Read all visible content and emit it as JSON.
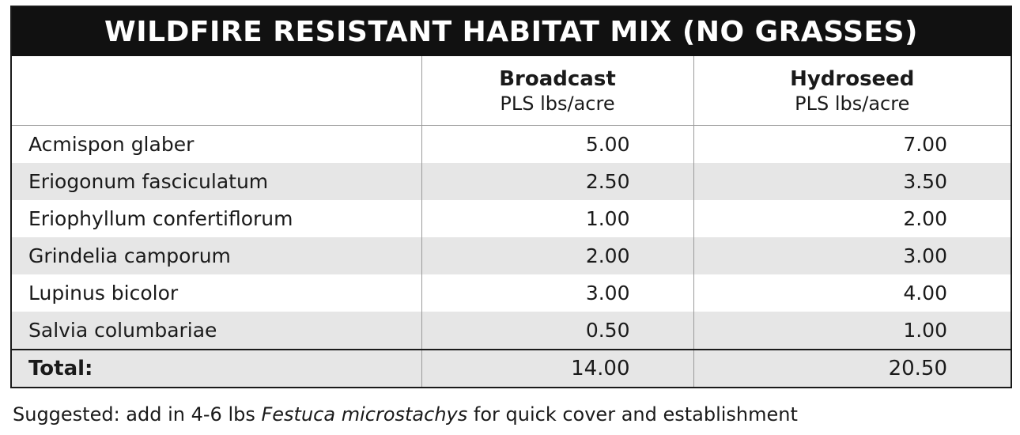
{
  "title": "WILDFIRE RESISTANT HABITAT MIX (NO GRASSES)",
  "columns": {
    "broadcast": {
      "method": "Broadcast",
      "unit": "PLS lbs/acre"
    },
    "hydroseed": {
      "method": "Hydroseed",
      "unit": "PLS lbs/acre"
    }
  },
  "rows": [
    {
      "species": "Acmispon glaber",
      "broadcast": "5.00",
      "hydroseed": "7.00"
    },
    {
      "species": "Eriogonum fasciculatum",
      "broadcast": "2.50",
      "hydroseed": "3.50"
    },
    {
      "species": "Eriophyllum confertiflorum",
      "broadcast": "1.00",
      "hydroseed": "2.00"
    },
    {
      "species": "Grindelia camporum",
      "broadcast": "2.00",
      "hydroseed": "3.00"
    },
    {
      "species": "Lupinus bicolor",
      "broadcast": "3.00",
      "hydroseed": "4.00"
    },
    {
      "species": "Salvia columbariae",
      "broadcast": "0.50",
      "hydroseed": "1.00"
    }
  ],
  "total": {
    "label": "Total:",
    "broadcast": "14.00",
    "hydroseed": "20.50"
  },
  "footnote": {
    "prefix": "Suggested: add in 4-6 lbs ",
    "species": "Festuca microstachys",
    "suffix": " for quick cover and establishment"
  }
}
